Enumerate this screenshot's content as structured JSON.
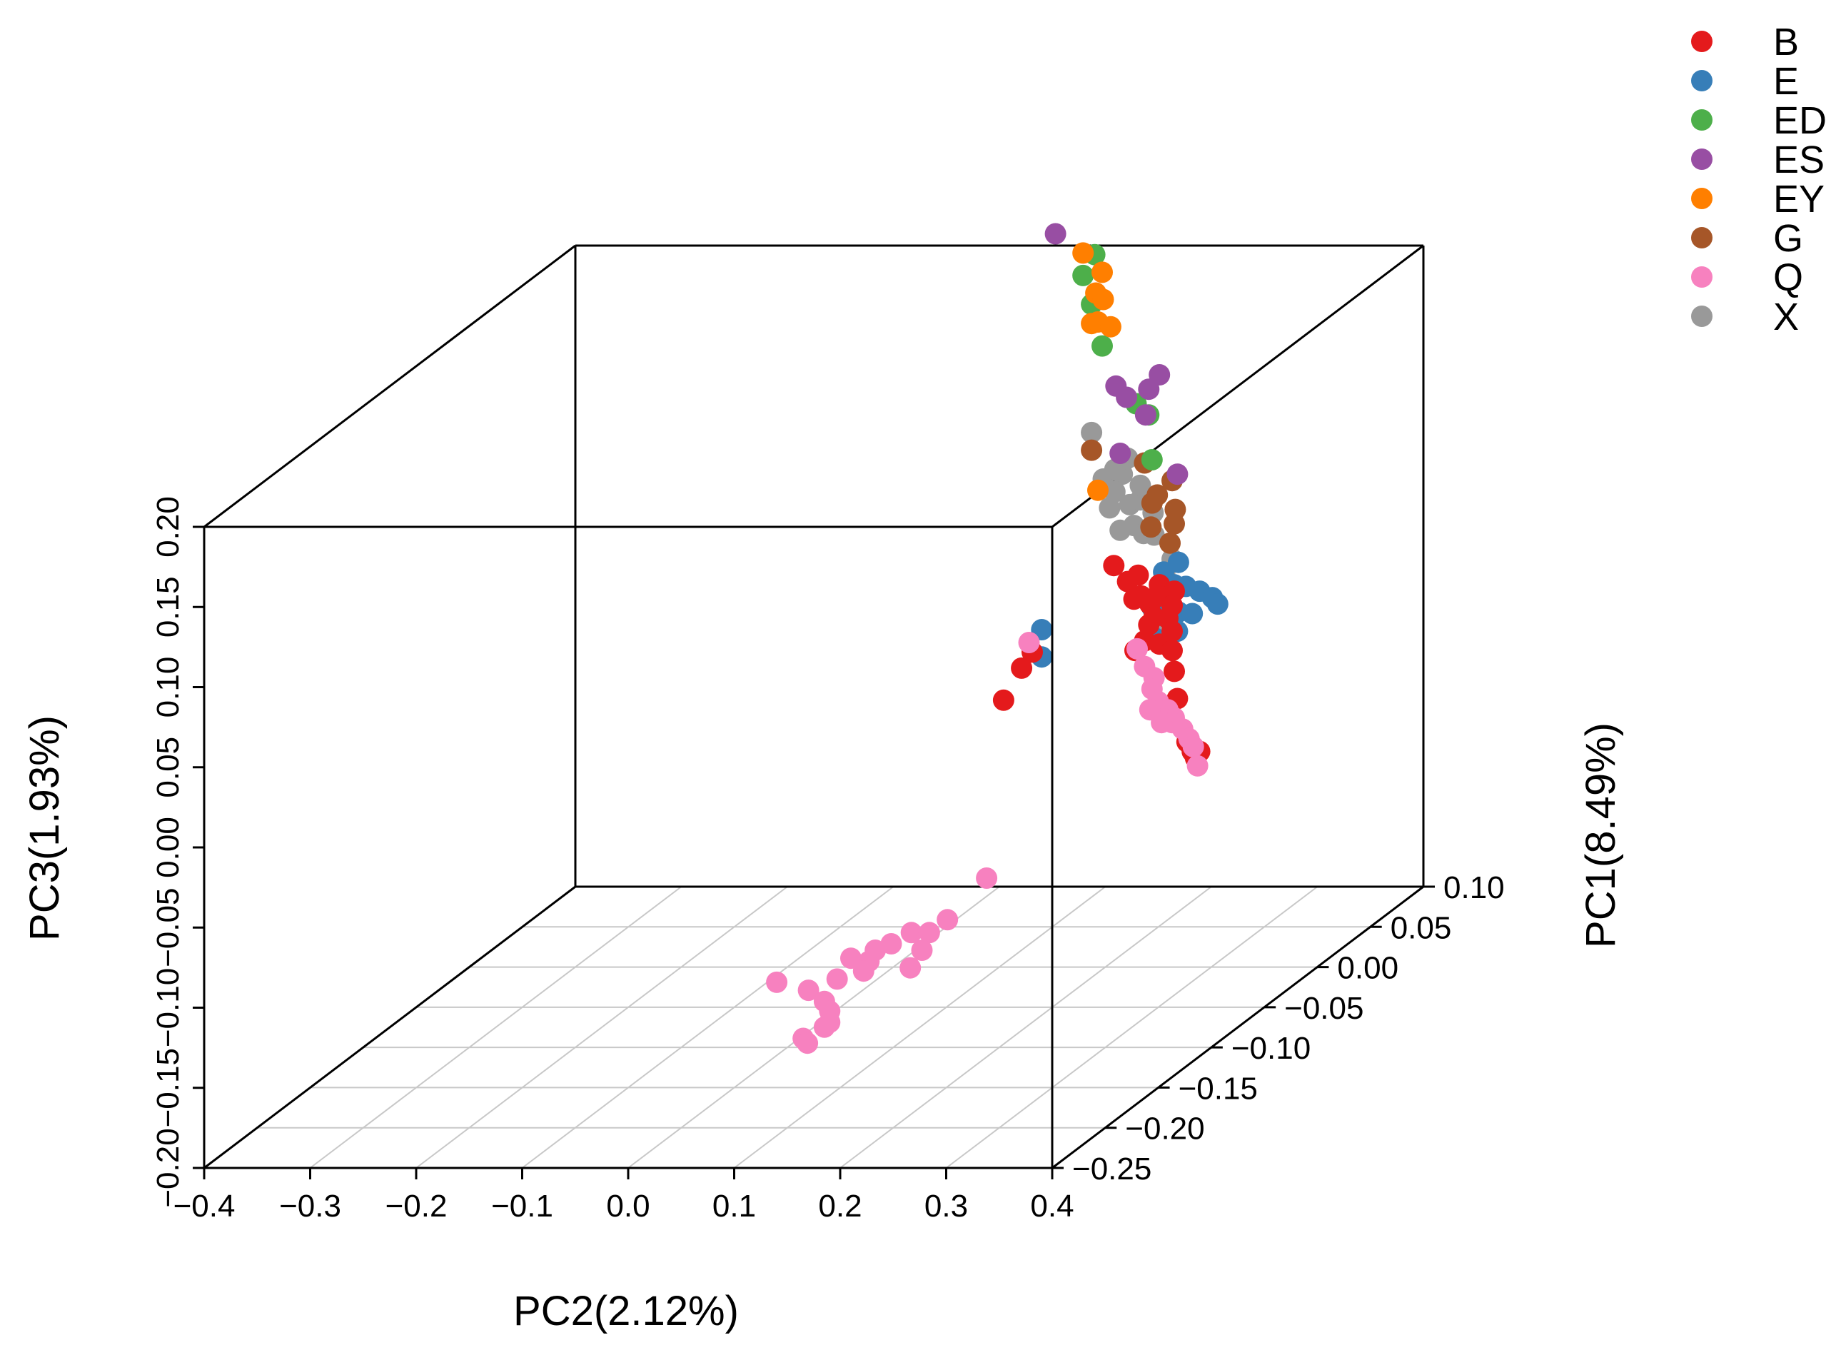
{
  "chart_data": {
    "type": "scatter",
    "projection": "3d",
    "title": "",
    "xlabel": "PC2(2.12%)",
    "ylabel": "PC1(8.49%)",
    "zlabel": "PC3(1.93%)",
    "xlim": [
      -0.4,
      0.4
    ],
    "ylim": [
      -0.25,
      0.1
    ],
    "zlim": [
      -0.2,
      0.2
    ],
    "x_ticks": [
      "−0.4",
      "−0.3",
      "−0.2",
      "−0.1",
      "0.0",
      "0.1",
      "0.2",
      "0.3",
      "0.4"
    ],
    "y_ticks": [
      "−0.25",
      "−0.20",
      "−0.15",
      "−0.10",
      "−0.05",
      "0.00",
      "0.05",
      "0.10"
    ],
    "z_ticks": [
      "−0.20",
      "−0.15",
      "−0.10",
      "−0.05",
      "0.00",
      "0.05",
      "0.10",
      "0.15",
      "0.20"
    ],
    "grid": "floor",
    "legend_position": "top-right",
    "legend": [
      {
        "name": "B",
        "color": "#e41a1c"
      },
      {
        "name": "E",
        "color": "#377eb8"
      },
      {
        "name": "ED",
        "color": "#4daf4a"
      },
      {
        "name": "ES",
        "color": "#984ea3"
      },
      {
        "name": "EY",
        "color": "#ff7f00"
      },
      {
        "name": "G",
        "color": "#a65628"
      },
      {
        "name": "Q",
        "color": "#f781bf"
      },
      {
        "name": "X",
        "color": "#999999"
      }
    ],
    "series": [
      {
        "name": "X",
        "color": "#999999",
        "points": [
          [
            0.186,
            0.001,
            0.133
          ],
          [
            0.22,
            0.001,
            0.117
          ],
          [
            0.215,
            0.001,
            0.107
          ],
          [
            0.208,
            0.001,
            0.096
          ],
          [
            0.203,
            0.001,
            0.086
          ],
          [
            0.222,
            0.001,
            0.088
          ],
          [
            0.232,
            0.001,
            0.091
          ],
          [
            0.244,
            0.001,
            0.083
          ],
          [
            0.226,
            0.001,
            0.075
          ],
          [
            0.213,
            0.001,
            0.072
          ],
          [
            0.245,
            0.001,
            0.069
          ],
          [
            0.235,
            0.001,
            0.07
          ],
          [
            0.262,
            0.001,
            0.054
          ],
          [
            0.255,
            0.001,
            0.045
          ],
          [
            0.255,
            0.001,
            0.028
          ],
          [
            0.264,
            0.001,
            0.021
          ],
          [
            0.255,
            0.001,
            0.014
          ],
          [
            0.197,
            0.001,
            0.104
          ],
          [
            0.208,
            0.001,
            0.11
          ],
          [
            0.232,
            0.001,
            0.1
          ]
        ]
      },
      {
        "name": "G",
        "color": "#a65628",
        "points": [
          [
            0.186,
            0.001,
            0.122
          ],
          [
            0.236,
            0.001,
            0.114
          ],
          [
            0.262,
            0.001,
            0.103
          ],
          [
            0.264,
            0.001,
            0.076
          ],
          [
            0.243,
            0.001,
            0.089
          ],
          [
            0.26,
            0.001,
            0.064
          ],
          [
            0.242,
            0.001,
            0.074
          ],
          [
            0.265,
            0.001,
            0.085
          ],
          [
            0.248,
            0.001,
            0.094
          ]
        ]
      },
      {
        "name": "ED",
        "color": "#4daf4a",
        "points": [
          [
            0.189,
            0.001,
            0.244
          ],
          [
            0.178,
            0.001,
            0.231
          ],
          [
            0.186,
            0.001,
            0.213
          ],
          [
            0.196,
            0.001,
            0.187
          ],
          [
            0.228,
            0.001,
            0.151
          ],
          [
            0.24,
            0.001,
            0.144
          ],
          [
            0.243,
            0.001,
            0.116
          ]
        ]
      },
      {
        "name": "EY",
        "color": "#ff7f00",
        "points": [
          [
            0.178,
            0.001,
            0.245
          ],
          [
            0.196,
            0.001,
            0.233
          ],
          [
            0.19,
            0.001,
            0.22
          ],
          [
            0.197,
            0.001,
            0.216
          ],
          [
            0.186,
            0.001,
            0.201
          ],
          [
            0.192,
            0.001,
            0.202
          ],
          [
            0.204,
            0.001,
            0.199
          ],
          [
            0.192,
            0.001,
            0.097
          ]
        ]
      },
      {
        "name": "ES",
        "color": "#984ea3",
        "points": [
          [
            0.152,
            0.001,
            0.257
          ],
          [
            0.25,
            0.001,
            0.169
          ],
          [
            0.24,
            0.001,
            0.16
          ],
          [
            0.209,
            0.001,
            0.162
          ],
          [
            0.219,
            0.001,
            0.155
          ],
          [
            0.237,
            0.001,
            0.144
          ],
          [
            0.213,
            0.001,
            0.12
          ],
          [
            0.267,
            0.001,
            0.107
          ]
        ]
      },
      {
        "name": "E",
        "color": "#377eb8",
        "points": [
          [
            0.139,
            0.001,
            0.01
          ],
          [
            0.139,
            0.001,
            -0.007
          ],
          [
            0.254,
            0.001,
            0.046
          ],
          [
            0.268,
            0.001,
            0.052
          ],
          [
            0.264,
            0.001,
            0.038
          ],
          [
            0.275,
            0.001,
            0.037
          ],
          [
            0.288,
            0.001,
            0.034
          ],
          [
            0.3,
            0.001,
            0.03
          ],
          [
            0.305,
            0.001,
            0.026
          ],
          [
            0.26,
            0.001,
            0.027
          ],
          [
            0.268,
            0.001,
            0.021
          ],
          [
            0.243,
            0.001,
            0.024
          ],
          [
            0.281,
            0.001,
            0.02
          ],
          [
            0.245,
            0.001,
            0.005
          ],
          [
            0.267,
            0.001,
            0.009
          ]
        ]
      },
      {
        "name": "B",
        "color": "#e41a1c",
        "points": [
          [
            0.207,
            0.001,
            0.05
          ],
          [
            0.22,
            0.001,
            0.04
          ],
          [
            0.23,
            0.001,
            0.044
          ],
          [
            0.226,
            0.001,
            0.029
          ],
          [
            0.246,
            0.001,
            0.03
          ],
          [
            0.25,
            0.001,
            0.038
          ],
          [
            0.264,
            0.001,
            0.034
          ],
          [
            0.241,
            0.001,
            0.026
          ],
          [
            0.245,
            0.001,
            0.018
          ],
          [
            0.258,
            0.001,
            0.017
          ],
          [
            0.262,
            0.001,
            0.009
          ],
          [
            0.25,
            0.001,
            0.001
          ],
          [
            0.262,
            0.001,
            -0.003
          ],
          [
            0.264,
            0.001,
            -0.016
          ],
          [
            0.267,
            0.001,
            -0.033
          ],
          [
            0.276,
            0.001,
            -0.06
          ],
          [
            0.281,
            0.001,
            -0.066
          ],
          [
            0.288,
            0.001,
            -0.066
          ],
          [
            0.284,
            0.001,
            -0.07
          ],
          [
            0.227,
            0.001,
            -0.003
          ],
          [
            0.13,
            0.001,
            -0.004
          ],
          [
            0.12,
            0.001,
            -0.014
          ],
          [
            0.103,
            0.001,
            -0.034
          ],
          [
            0.233,
            0.001,
            0.031
          ],
          [
            0.236,
            0.001,
            0.003
          ],
          [
            0.24,
            0.001,
            0.013
          ],
          [
            0.262,
            0.001,
            0.025
          ]
        ]
      },
      {
        "name": "Q",
        "color": "#f781bf",
        "points": [
          [
            -0.111,
            0.001,
            -0.21
          ],
          [
            -0.081,
            0.001,
            -0.215
          ],
          [
            -0.066,
            0.001,
            -0.222
          ],
          [
            -0.061,
            0.001,
            -0.228
          ],
          [
            -0.066,
            0.001,
            -0.238
          ],
          [
            -0.086,
            0.001,
            -0.245
          ],
          [
            -0.082,
            0.001,
            -0.248
          ],
          [
            -0.061,
            0.001,
            -0.235
          ],
          [
            -0.024,
            0.001,
            -0.197
          ],
          [
            -0.018,
            0.001,
            -0.19
          ],
          [
            -0.003,
            0.001,
            -0.186
          ],
          [
            0.016,
            0.001,
            -0.179
          ],
          [
            0.033,
            0.001,
            -0.179
          ],
          [
            0.026,
            0.001,
            -0.19
          ],
          [
            0.05,
            0.001,
            -0.171
          ],
          [
            0.087,
            0.001,
            -0.145
          ],
          [
            -0.041,
            0.001,
            -0.195
          ],
          [
            -0.029,
            0.001,
            -0.203
          ],
          [
            -0.054,
            0.001,
            -0.208
          ],
          [
            0.015,
            0.001,
            -0.201
          ],
          [
            0.127,
            0.001,
            0.002
          ],
          [
            0.229,
            0.001,
            -0.002
          ],
          [
            0.236,
            0.001,
            -0.013
          ],
          [
            0.245,
            0.001,
            -0.02
          ],
          [
            0.243,
            0.001,
            -0.027
          ],
          [
            0.249,
            0.001,
            -0.035
          ],
          [
            0.258,
            0.001,
            -0.04
          ],
          [
            0.264,
            0.001,
            -0.045
          ],
          [
            0.272,
            0.001,
            -0.052
          ],
          [
            0.278,
            0.001,
            -0.058
          ],
          [
            0.282,
            0.001,
            -0.063
          ],
          [
            0.286,
            0.001,
            -0.075
          ],
          [
            0.262,
            0.001,
            -0.048
          ],
          [
            0.252,
            0.001,
            -0.048
          ],
          [
            0.241,
            0.001,
            -0.04
          ]
        ]
      }
    ]
  }
}
